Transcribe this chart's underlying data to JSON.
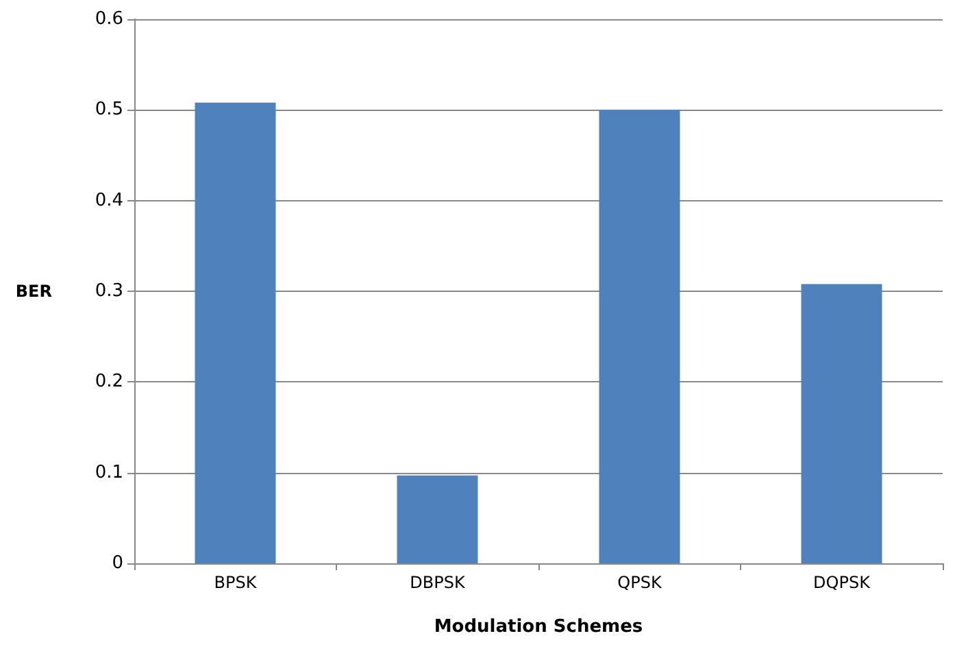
{
  "chart_data": {
    "type": "bar",
    "xlabel": "Modulation Schemes",
    "ylabel": "BER",
    "categories": [
      "BPSK",
      "DBPSK",
      "QPSK",
      "DQPSK"
    ],
    "values": [
      0.508,
      0.097,
      0.5,
      0.308
    ],
    "color": "#4f81bd",
    "ylim": [
      0,
      0.6
    ],
    "yticks": [
      0,
      0.1,
      0.2,
      0.3,
      0.4,
      0.5,
      0.6
    ],
    "grid": "y"
  }
}
